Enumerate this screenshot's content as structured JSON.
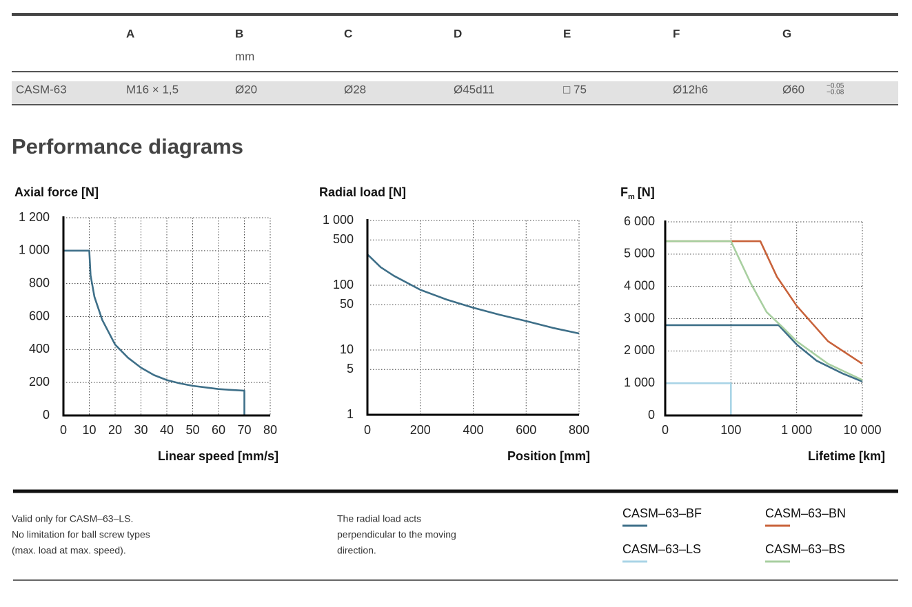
{
  "table": {
    "headers": [
      "A",
      "B",
      "C",
      "D",
      "E",
      "F",
      "G"
    ],
    "unit": "mm",
    "rows": [
      [
        "CASM-63",
        "M16 × 1,5",
        "Ø20",
        "Ø28",
        "Ø45d11",
        "□ 75",
        "Ø12h6",
        "Ø60"
      ]
    ],
    "tolerance": [
      "−0.05",
      "−0.08"
    ]
  },
  "heading": "Performance diagrams",
  "chart_data": [
    {
      "type": "line",
      "title": "Axial force [N]",
      "xlabel": "Linear speed [mm/s]",
      "color": "#3e6f88",
      "x": [
        0,
        10,
        10.5,
        12,
        15,
        20,
        25,
        30,
        35,
        40,
        45,
        50,
        55,
        60,
        65,
        70,
        70
      ],
      "values": [
        1000,
        1000,
        850,
        720,
        580,
        430,
        350,
        290,
        245,
        215,
        195,
        180,
        170,
        160,
        155,
        150,
        0
      ],
      "xlim": [
        0,
        80
      ],
      "xticks": [
        0,
        10,
        20,
        30,
        40,
        50,
        60,
        70,
        80
      ],
      "ylim": [
        0,
        1200
      ],
      "yticks": [
        0,
        200,
        400,
        600,
        800,
        {
          "value": 1000,
          "label": "1 000"
        },
        {
          "value": 1200,
          "label": "1 200"
        }
      ],
      "grid": true
    },
    {
      "type": "line",
      "title": "Radial load [N]",
      "xlabel": "Position [mm]",
      "color": "#3e6f88",
      "yscale": "log",
      "x": [
        0,
        50,
        100,
        200,
        300,
        400,
        500,
        600,
        700,
        800
      ],
      "values": [
        300,
        190,
        140,
        85,
        60,
        45,
        35,
        28,
        22,
        18
      ],
      "xlim": [
        0,
        800
      ],
      "xticks": [
        0,
        200,
        400,
        600,
        800
      ],
      "ylim": [
        1,
        1000
      ],
      "yticks": [
        1,
        5,
        10,
        50,
        100,
        500,
        {
          "value": 1000,
          "label": "1 000"
        }
      ],
      "grid": true
    },
    {
      "type": "line",
      "title": "F",
      "title_subscript": "m",
      "title_unit": "[N]",
      "xlabel": "Lifetime [km]",
      "xscale": "log",
      "xlim": [
        0,
        10000
      ],
      "xticks": [
        0,
        100,
        {
          "value": 1000,
          "label": "1 000"
        },
        {
          "value": 10000,
          "label": "10 000"
        }
      ],
      "ylim": [
        0,
        6000
      ],
      "yticks": [
        0,
        {
          "value": 1000,
          "label": "1 000"
        },
        {
          "value": 2000,
          "label": "2 000"
        },
        {
          "value": 3000,
          "label": "3 000"
        },
        {
          "value": 4000,
          "label": "4 000"
        },
        {
          "value": 5000,
          "label": "5 000"
        },
        {
          "value": 6000,
          "label": "6 000"
        }
      ],
      "grid": true,
      "series": [
        {
          "name": "CASM–63–BF",
          "color": "#3e6f88",
          "x": [
            0,
            530,
            1000,
            2000,
            5000,
            10000
          ],
          "values": [
            2800,
            2800,
            2200,
            1700,
            1300,
            1050
          ]
        },
        {
          "name": "CASM–63–BN",
          "color": "#c8623a",
          "x": [
            0,
            280,
            500,
            1000,
            3000,
            10000
          ],
          "values": [
            5400,
            5400,
            4300,
            3400,
            2300,
            1600
          ]
        },
        {
          "name": "CASM–63–LS",
          "color": "#a9d4e6",
          "x": [
            0,
            100,
            100
          ],
          "values": [
            1000,
            1000,
            0
          ]
        },
        {
          "name": "CASM–63–BS",
          "color": "#a8cfa0",
          "x": [
            0,
            100,
            200,
            350,
            600,
            1000,
            3000,
            10000
          ],
          "values": [
            5400,
            5400,
            4100,
            3200,
            2750,
            2300,
            1600,
            1100
          ]
        }
      ]
    }
  ],
  "notes": [
    [
      "Valid only for CASM–63–LS.",
      "No limitation for ball screw types",
      "(max. load at max. speed)."
    ],
    [
      "The radial load acts",
      "perpendicular to the moving",
      "direction."
    ]
  ]
}
